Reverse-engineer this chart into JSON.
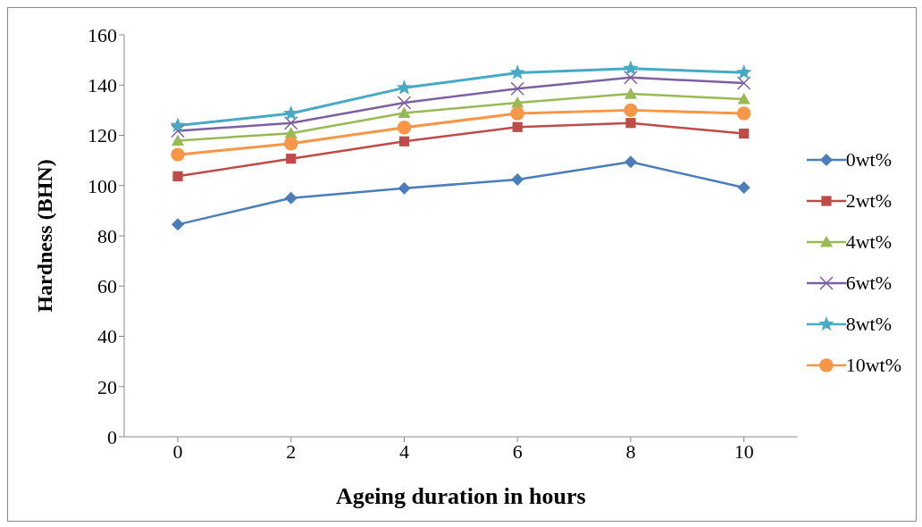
{
  "chart_data": {
    "type": "line",
    "xlabel": "Ageing duration in hours",
    "ylabel": "Hardness (BHN)",
    "categories": [
      "0",
      "2",
      "4",
      "6",
      "8",
      "10"
    ],
    "ylim": [
      0,
      160
    ],
    "yticks": [
      0,
      20,
      40,
      60,
      80,
      100,
      120,
      140,
      160
    ],
    "grid": false,
    "legend": "right",
    "line_style": "solid",
    "series": [
      {
        "name": "0wt%",
        "color": "#4a7ebb",
        "marker": "diamond",
        "values": [
          84.5,
          95,
          98.9,
          102.4,
          109.4,
          99.2
        ]
      },
      {
        "name": "2wt%",
        "color": "#be4b48",
        "marker": "square",
        "values": [
          103.7,
          110.7,
          117.6,
          123.3,
          124.9,
          120.7
        ]
      },
      {
        "name": "4wt%",
        "color": "#98b954",
        "marker": "triangle",
        "values": [
          117.9,
          120.8,
          128.9,
          133,
          136.5,
          134.4
        ]
      },
      {
        "name": "6wt%",
        "color": "#7d60a0",
        "marker": "cross",
        "values": [
          121.8,
          124.9,
          133,
          138.6,
          143,
          140.8
        ]
      },
      {
        "name": "8wt%",
        "color": "#46aac5",
        "marker": "star",
        "values": [
          123.9,
          128.7,
          138.9,
          144.9,
          146.6,
          145
        ]
      },
      {
        "name": "10wt%",
        "color": "#f79646",
        "marker": "circle",
        "values": [
          112.3,
          116.7,
          123.1,
          128.7,
          130,
          128.7
        ]
      }
    ]
  }
}
